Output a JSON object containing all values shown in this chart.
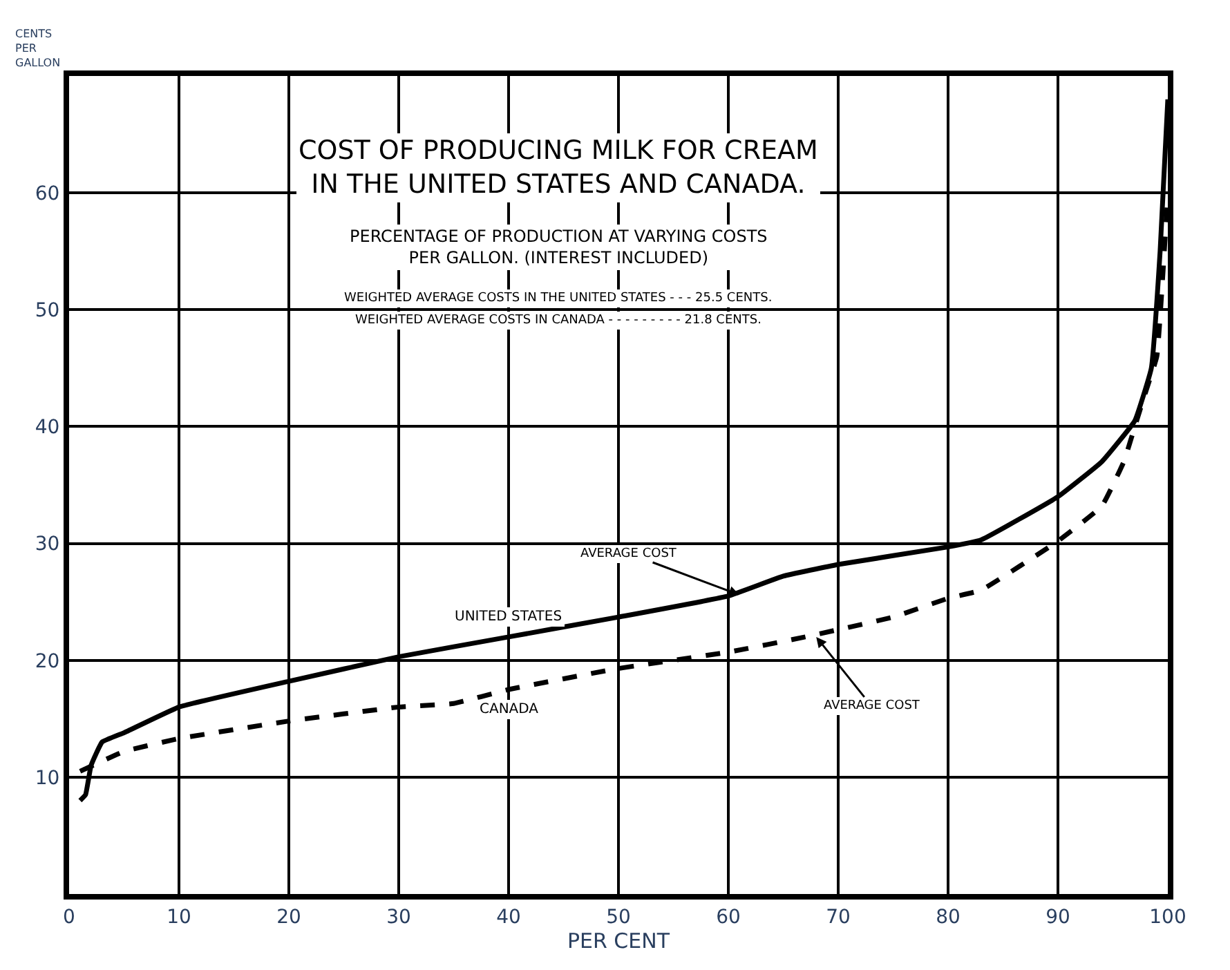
{
  "chart_data": {
    "type": "line",
    "title": "COST OF PRODUCING MILK FOR CREAM\nIN THE UNITED STATES AND CANADA.",
    "subtitle": "PERCENTAGE OF PRODUCTION AT VARYING COSTS\nPER GALLON. (INTEREST INCLUDED)",
    "xlabel": "PER CENT",
    "ylabel": "CENTS PER GALLON",
    "annotations": [
      "WEIGHTED AVERAGE COSTS IN THE UNITED STATES - - - 25.5 CENTS.",
      "WEIGHTED AVERAGE COSTS IN CANADA - - - - - - - - - 21.8 CENTS.",
      {
        "text": "AVERAGE COST",
        "x": 61,
        "y": 25.6
      },
      {
        "text": "AVERAGE COST",
        "x": 68,
        "y": 22
      }
    ],
    "series": [
      {
        "name": "UNITED STATES",
        "color": "#000000",
        "line_style": "solid",
        "x": [
          1,
          1.5,
          2,
          3,
          5,
          10,
          20,
          30,
          40,
          50,
          60,
          65,
          70,
          80,
          83,
          90,
          94,
          97,
          98.5,
          99.3,
          100
        ],
        "values": [
          8,
          8.5,
          11,
          13,
          13.8,
          16,
          18.2,
          20.3,
          22,
          23.7,
          25.5,
          27.2,
          28.2,
          29.7,
          30.3,
          34,
          37,
          40.5,
          45,
          55,
          68
        ]
      },
      {
        "name": "CANADA",
        "color": "#000000",
        "line_style": "dashed",
        "x": [
          1,
          5,
          10,
          20,
          30,
          35,
          40,
          50,
          60,
          67,
          75,
          80,
          83,
          90,
          94,
          96,
          97,
          98,
          99,
          100
        ],
        "values": [
          10.5,
          12.2,
          13.3,
          14.8,
          16,
          16.3,
          17.5,
          19.3,
          20.7,
          22,
          23.7,
          25.3,
          26,
          30.2,
          33.2,
          37,
          40,
          43,
          46,
          60
        ]
      }
    ],
    "xlim": [
      0,
      100
    ],
    "ylim": [
      0,
      70
    ],
    "xticks": [
      0,
      10,
      20,
      30,
      40,
      50,
      60,
      70,
      80,
      90,
      100
    ],
    "yticks": [
      10,
      20,
      30,
      40,
      50,
      60
    ],
    "grid": true,
    "legend": false,
    "marker": "none"
  }
}
